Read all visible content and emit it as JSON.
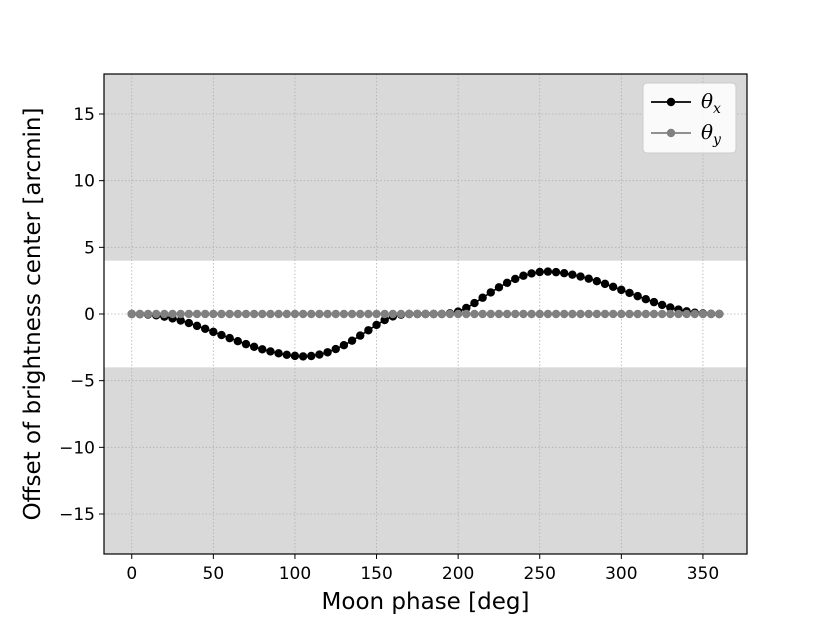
{
  "chart_data": {
    "type": "line",
    "title": "",
    "xlabel": "Moon phase [deg]",
    "ylabel": "Offset of brightness center [arcmin]",
    "xlim": [
      -17,
      377
    ],
    "ylim": [
      -18,
      18
    ],
    "xticks": [
      0,
      50,
      100,
      150,
      200,
      250,
      300,
      350
    ],
    "yticks": [
      -15,
      -10,
      -5,
      0,
      5,
      10,
      15
    ],
    "xtick_labels": [
      "0",
      "50",
      "100",
      "150",
      "200",
      "250",
      "300",
      "350"
    ],
    "ytick_labels": [
      "−15",
      "−10",
      "−5",
      "0",
      "5",
      "10",
      "15"
    ],
    "grid": true,
    "shaded_regions": [
      {
        "y_from": 4,
        "y_to": 18,
        "color": "#d9d9d9"
      },
      {
        "y_from": -18,
        "y_to": -4,
        "color": "#d9d9d9"
      }
    ],
    "legend": {
      "placement": "top-right"
    },
    "series": [
      {
        "name": "θ",
        "subscript": "x",
        "color": "#000000",
        "marker": "circle",
        "x": [
          0,
          5,
          10,
          15,
          20,
          25,
          30,
          35,
          40,
          45,
          50,
          55,
          60,
          65,
          70,
          75,
          80,
          85,
          90,
          95,
          100,
          105,
          110,
          115,
          120,
          125,
          130,
          135,
          140,
          145,
          150,
          155,
          160,
          165,
          170,
          175,
          180,
          185,
          190,
          195,
          200,
          205,
          210,
          215,
          220,
          225,
          230,
          235,
          240,
          245,
          250,
          255,
          260,
          265,
          270,
          275,
          280,
          285,
          290,
          295,
          300,
          305,
          310,
          315,
          320,
          325,
          330,
          335,
          340,
          345,
          350,
          355,
          360
        ],
        "y": [
          0,
          -0.01,
          -0.04,
          -0.1,
          -0.2,
          -0.33,
          -0.49,
          -0.68,
          -0.89,
          -1.11,
          -1.34,
          -1.58,
          -1.81,
          -2.04,
          -2.26,
          -2.46,
          -2.65,
          -2.81,
          -2.95,
          -3.06,
          -3.14,
          -3.18,
          -3.15,
          -3.04,
          -2.87,
          -2.63,
          -2.34,
          -2.0,
          -1.62,
          -1.22,
          -0.82,
          -0.45,
          -0.18,
          -0.05,
          0,
          0,
          0,
          0,
          0,
          0.05,
          0.18,
          0.45,
          0.82,
          1.22,
          1.62,
          2.0,
          2.34,
          2.63,
          2.87,
          3.04,
          3.15,
          3.18,
          3.14,
          3.06,
          2.95,
          2.81,
          2.65,
          2.46,
          2.26,
          2.04,
          1.81,
          1.58,
          1.34,
          1.11,
          0.89,
          0.68,
          0.49,
          0.33,
          0.2,
          0.1,
          0.04,
          0.01,
          0
        ]
      },
      {
        "name": "θ",
        "subscript": "y",
        "color": "#808080",
        "marker": "circle",
        "x": [
          0,
          5,
          10,
          15,
          20,
          25,
          30,
          35,
          40,
          45,
          50,
          55,
          60,
          65,
          70,
          75,
          80,
          85,
          90,
          95,
          100,
          105,
          110,
          115,
          120,
          125,
          130,
          135,
          140,
          145,
          150,
          155,
          160,
          165,
          170,
          175,
          180,
          185,
          190,
          195,
          200,
          205,
          210,
          215,
          220,
          225,
          230,
          235,
          240,
          245,
          250,
          255,
          260,
          265,
          270,
          275,
          280,
          285,
          290,
          295,
          300,
          305,
          310,
          315,
          320,
          325,
          330,
          335,
          340,
          345,
          350,
          355,
          360
        ],
        "y": [
          0,
          0,
          0,
          0,
          0,
          0,
          0,
          0,
          0,
          0,
          0,
          0,
          0,
          0,
          0,
          0,
          0,
          0,
          0,
          0,
          0,
          0,
          0,
          0,
          0,
          0,
          0,
          0,
          0,
          0,
          0,
          0,
          0,
          0,
          0,
          0,
          0,
          0,
          0,
          0,
          0,
          0,
          0,
          0,
          0,
          0,
          0,
          0,
          0,
          0,
          0,
          0,
          0,
          0,
          0,
          0,
          0,
          0,
          0,
          0,
          0,
          0,
          0,
          0,
          0,
          0,
          0,
          0,
          0,
          0,
          0,
          0,
          0
        ]
      }
    ]
  }
}
